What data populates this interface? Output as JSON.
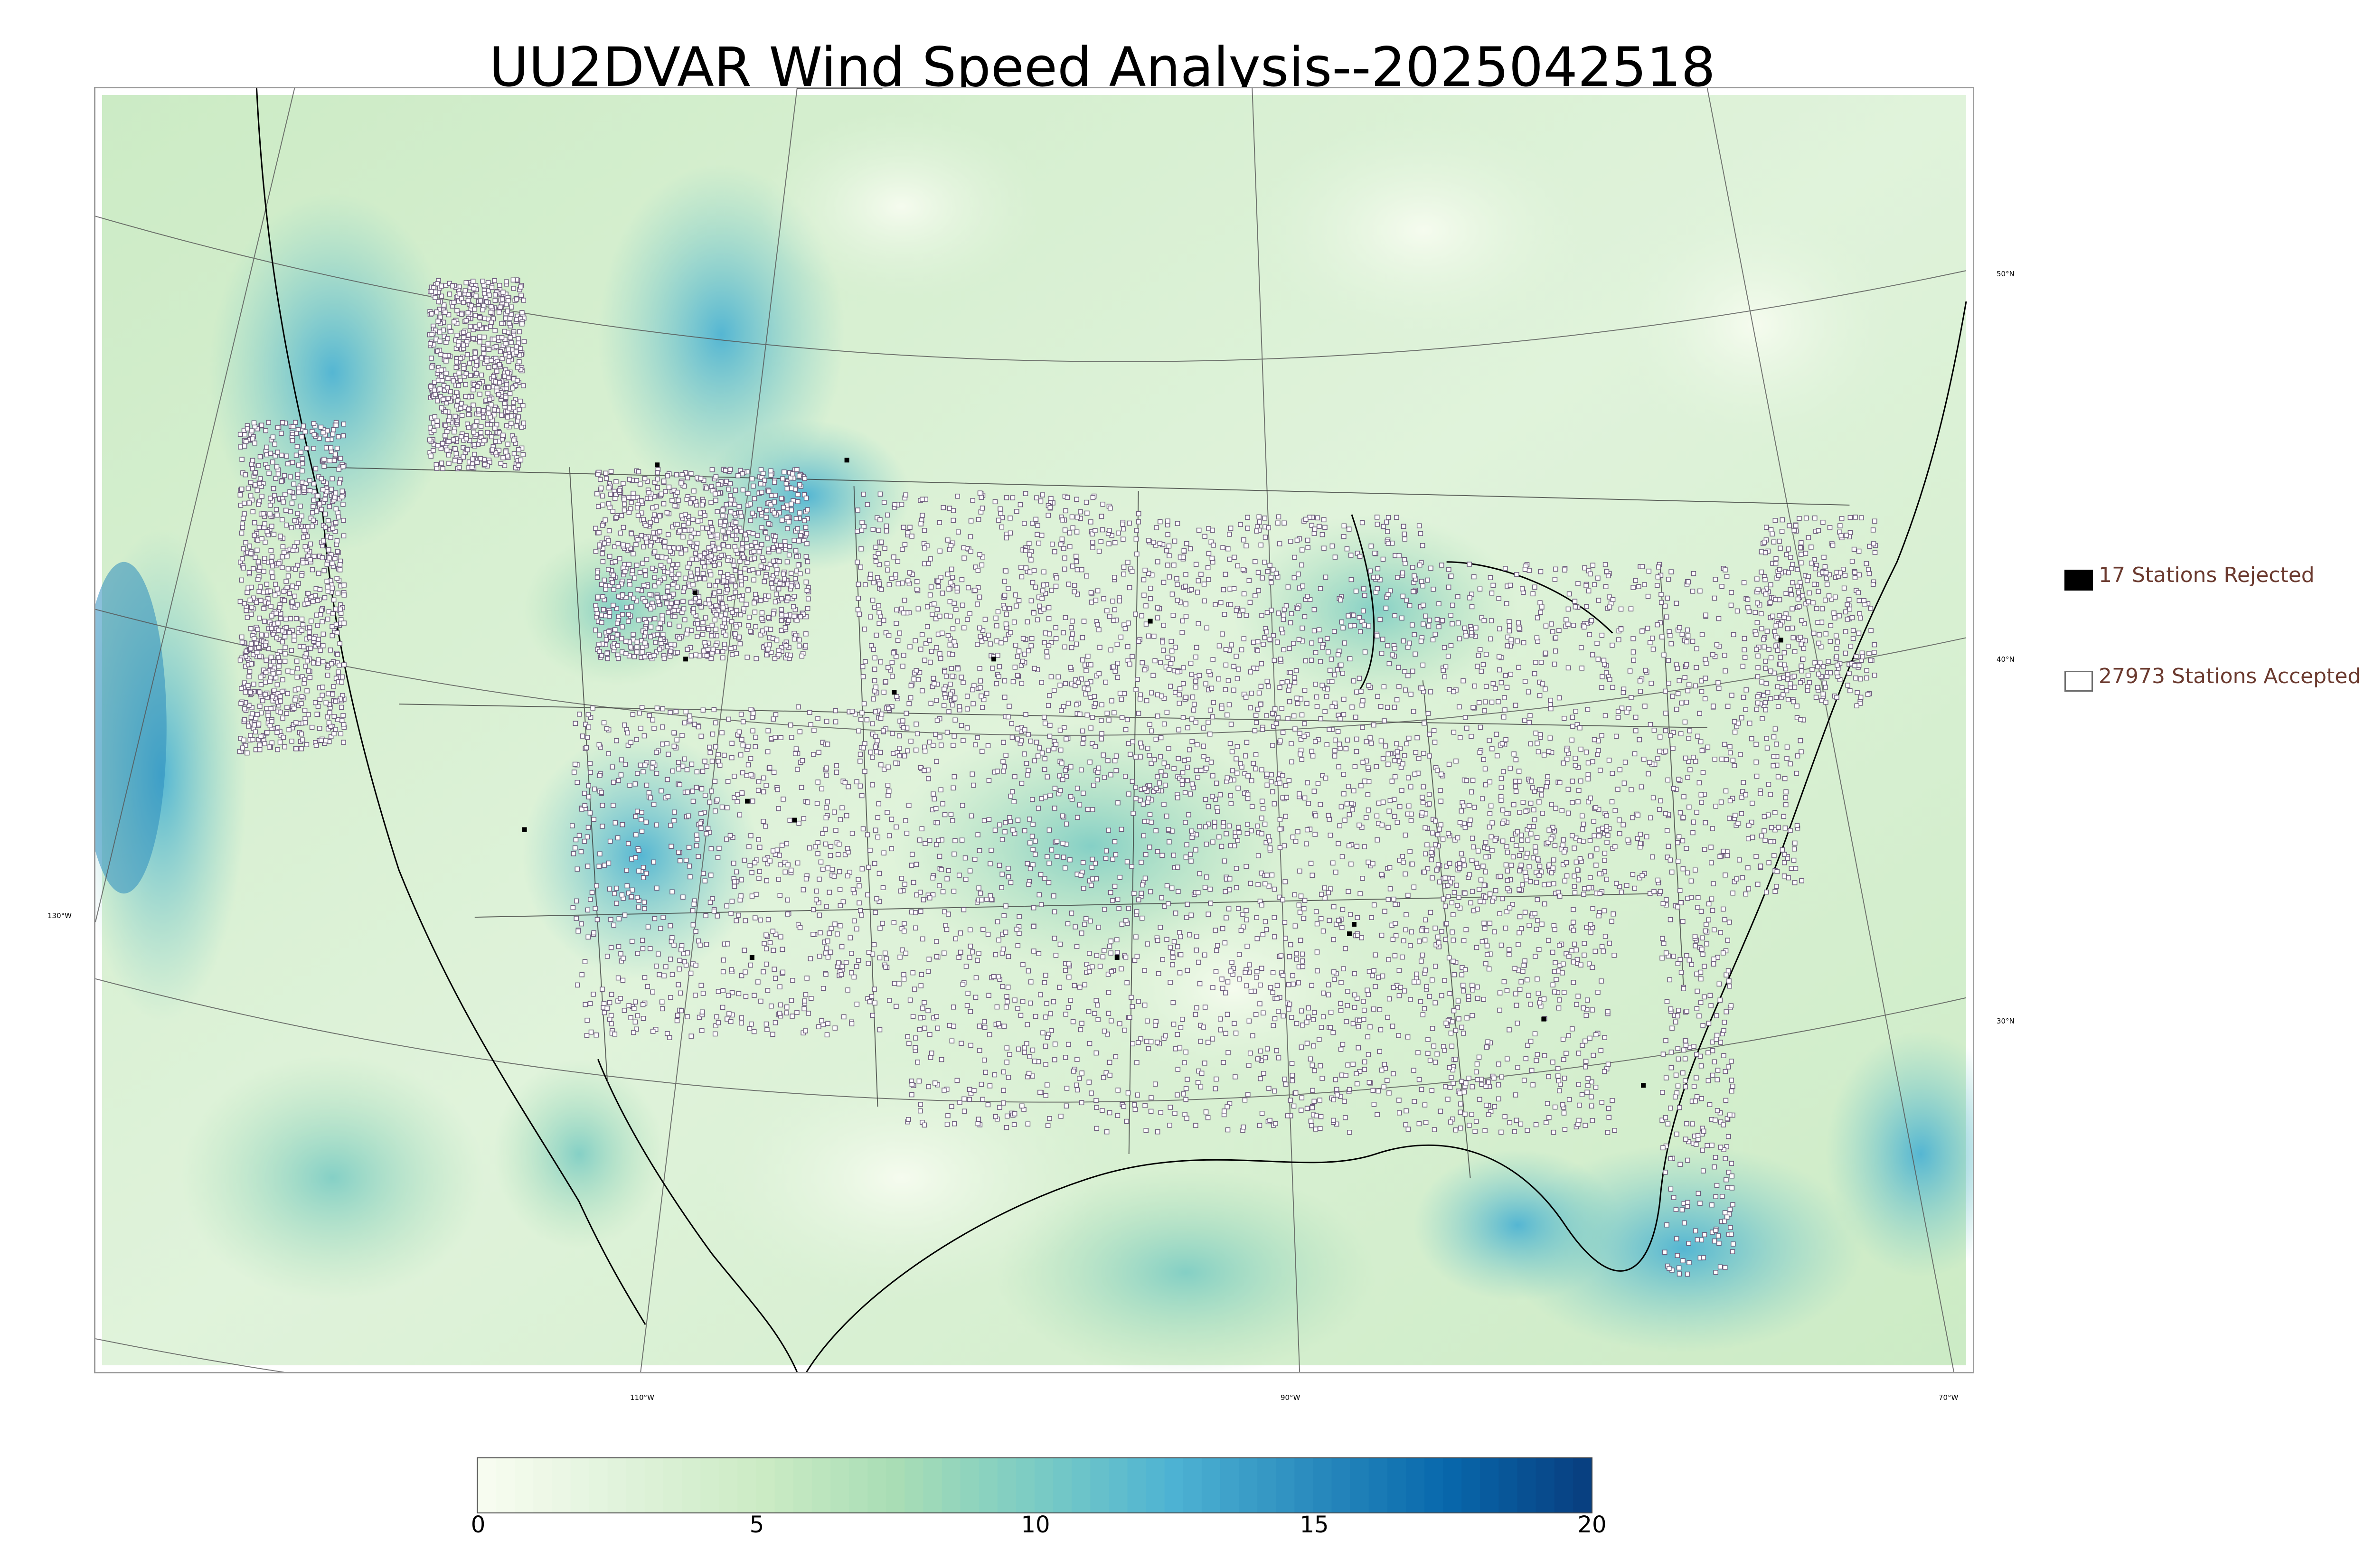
{
  "title": "UU2DVAR Wind Speed Analysis--2025042518",
  "map": {
    "lat_labels": [
      "50°N",
      "40°N",
      "30°N"
    ],
    "lon_labels": [
      "130°W",
      "110°W",
      "90°W",
      "70°W"
    ]
  },
  "legend": {
    "rejected": "17 Stations Rejected",
    "accepted": "27973 Stations Accepted"
  },
  "colorbar": {
    "ticks": [
      "0",
      "5",
      "10",
      "15",
      "20"
    ],
    "range": [
      0,
      20
    ],
    "colors": [
      "#f7fcf0",
      "#e0f3db",
      "#ccebc5",
      "#a8ddb5",
      "#7bccc4",
      "#4eb3d3",
      "#2b8cbe",
      "#0868ac",
      "#084081"
    ]
  },
  "colors": {
    "rejected_marker": "#000000",
    "accepted_marker": "#ffffff",
    "legend_text": "#6b3a2f"
  }
}
